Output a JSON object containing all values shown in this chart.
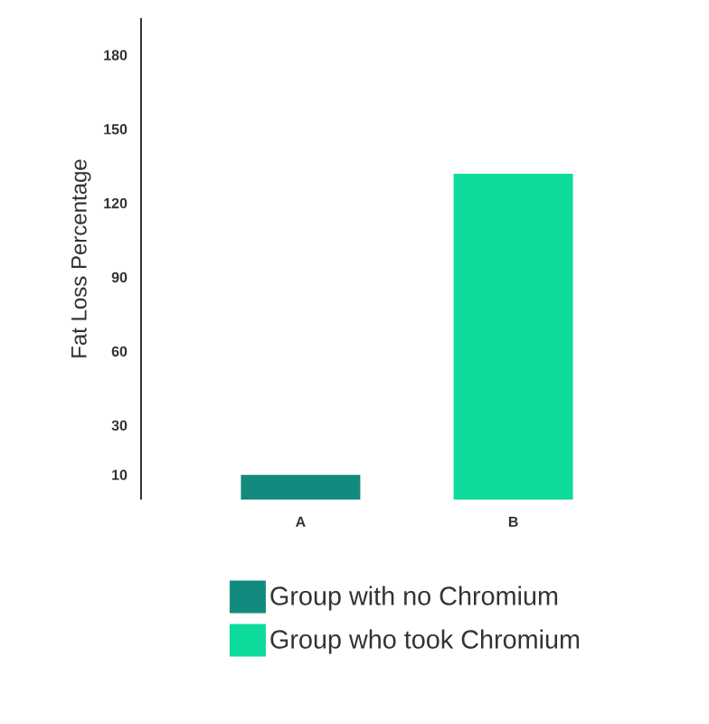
{
  "chart_data": {
    "type": "bar",
    "ylabel": "Fat Loss Percentage",
    "categories": [
      "A",
      "B"
    ],
    "series": [
      {
        "name": "Group with no Chromium",
        "color": "#138a7e",
        "values": [
          10,
          null
        ]
      },
      {
        "name": "Group who took Chromium",
        "color": "#0ddb9b",
        "values": [
          null,
          132
        ]
      }
    ],
    "ylim": [
      0,
      195
    ],
    "yticks": [
      10,
      30,
      60,
      90,
      120,
      150,
      180
    ],
    "grid": false,
    "legend": "bottom"
  }
}
